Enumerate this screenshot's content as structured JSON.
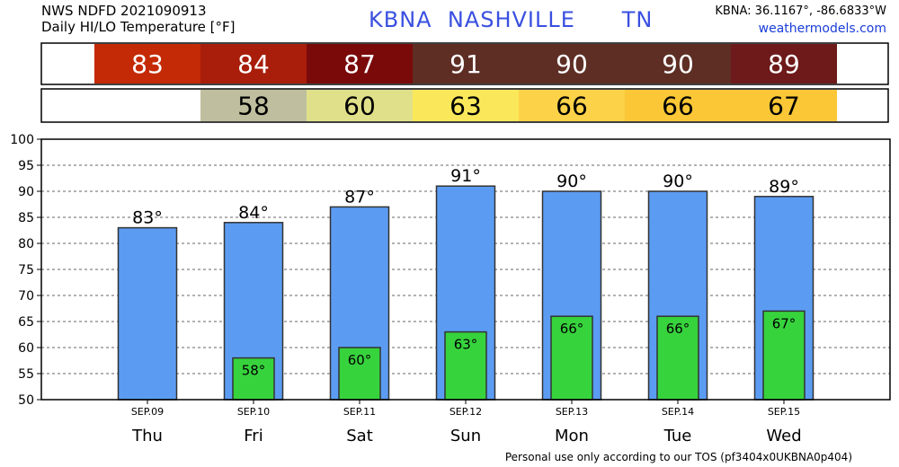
{
  "header": {
    "line1": "NWS NDFD 2021090913",
    "line2": "Daily HI/LO Temperature [°F]",
    "station_id": "KBNA",
    "station_name": "NASHVILLE",
    "state": "TN",
    "coords": "KBNA: 36.1167°, -86.6833°W",
    "site": "weathermodels.com"
  },
  "footer": "Personal use only according to our TOS (pf3404x0UKBNA0p404)",
  "chart_data": {
    "type": "bar",
    "categories": [
      "Thu",
      "Fri",
      "Sat",
      "Sun",
      "Mon",
      "Tue",
      "Wed"
    ],
    "dates": [
      "SEP.09",
      "SEP.10",
      "SEP.11",
      "SEP.12",
      "SEP.13",
      "SEP.14",
      "SEP.15"
    ],
    "series": [
      {
        "values": [
          83,
          84,
          87,
          91,
          90,
          90,
          89
        ],
        "color": "#5b9cf2"
      },
      {
        "values": [
          null,
          58,
          60,
          63,
          66,
          66,
          67
        ],
        "color": "#37d33d"
      }
    ],
    "data_labels_hi": [
      "83°",
      "84°",
      "87°",
      "91°",
      "90°",
      "90°",
      "89°"
    ],
    "data_labels_lo": [
      "",
      "58°",
      "60°",
      "63°",
      "66°",
      "66°",
      "67°"
    ],
    "ylim": [
      50,
      100
    ],
    "yticks": [
      50,
      55,
      60,
      65,
      70,
      75,
      80,
      85,
      90,
      95,
      100
    ],
    "grid": true,
    "hi_strip": {
      "labels": [
        "83",
        "84",
        "87",
        "91",
        "90",
        "90",
        "89"
      ],
      "colors": [
        "#c42a05",
        "#a81e0a",
        "#7a0a0a",
        "#5e2e25",
        "#5e2e25",
        "#5e2e25",
        "#6e1a1a"
      ]
    },
    "lo_strip": {
      "labels": [
        "",
        "58",
        "60",
        "63",
        "66",
        "66",
        "67"
      ],
      "colors": [
        "",
        "#bfbfa0",
        "#e0e08a",
        "#fbe85a",
        "#fcd248",
        "#fbc736",
        "#fbc736"
      ]
    }
  }
}
